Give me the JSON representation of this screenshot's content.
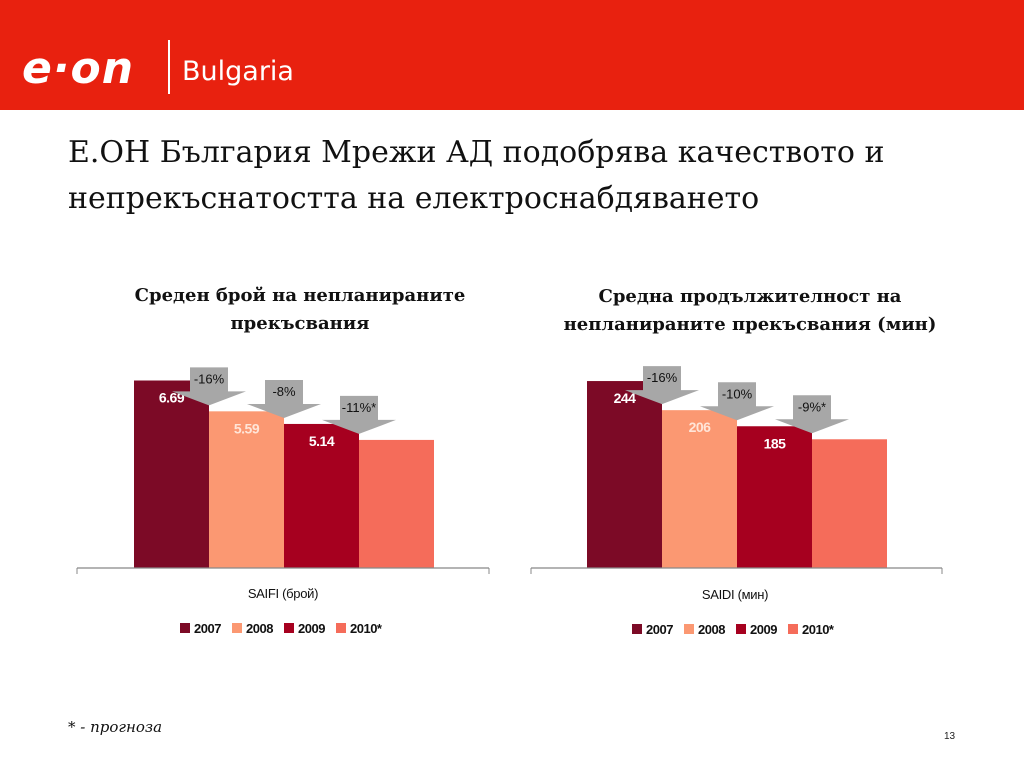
{
  "header": {
    "logo_text": "e·on",
    "subtitle": "Bulgaria",
    "color": "#e8210f"
  },
  "title": "Е.ОН България Мрежи АД подобрява качеството и непрекъснатостта на електроснабдяването",
  "legend_items": [
    "2007",
    "2008",
    "2009",
    "2010*"
  ],
  "series_colors": [
    "#7c0a26",
    "#fb9872",
    "#a6001f",
    "#f56c5a"
  ],
  "chart_data": [
    {
      "type": "bar",
      "title": "Среден брой на непланираните прекъсвания",
      "xlabel": "SAIFI (брой)",
      "categories": [
        "SAIFI (брой)"
      ],
      "series": [
        {
          "name": "2007",
          "values": [
            6.69
          ],
          "label": "6.69"
        },
        {
          "name": "2008",
          "values": [
            5.59
          ],
          "label": "5.59"
        },
        {
          "name": "2009",
          "values": [
            5.14
          ],
          "label": "5.14"
        },
        {
          "name": "2010*",
          "values": [
            4.57
          ],
          "label": ""
        }
      ],
      "ylim": [
        0,
        7.6
      ],
      "annotations": [
        "-16%",
        "-8%",
        "-11%*"
      ],
      "legend": "bottom"
    },
    {
      "type": "bar",
      "title": "Средна продължителност на непланираните прекъсвания (мин)",
      "xlabel": "SAIDI (мин)",
      "categories": [
        "SAIDI (мин)"
      ],
      "series": [
        {
          "name": "2007",
          "values": [
            244
          ],
          "label": "244"
        },
        {
          "name": "2008",
          "values": [
            206
          ],
          "label": "206"
        },
        {
          "name": "2009",
          "values": [
            185
          ],
          "label": "185"
        },
        {
          "name": "2010*",
          "values": [
            168
          ],
          "label": ""
        }
      ],
      "ylim": [
        0,
        278
      ],
      "annotations": [
        "-16%",
        "-10%",
        "-9%*"
      ],
      "legend": "bottom"
    }
  ],
  "footnote": "* - прогноза",
  "page_number": "13"
}
